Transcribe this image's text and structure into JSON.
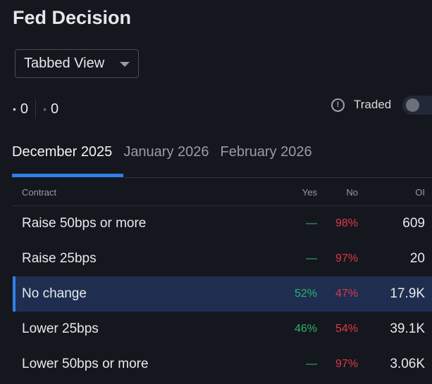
{
  "title": "Fed Decision",
  "view_select": {
    "value": "Tabbed View"
  },
  "counts": {
    "filled": "0",
    "open": "0"
  },
  "traded": {
    "label": "Traded",
    "on": false
  },
  "tabs": [
    {
      "label": "December 2025",
      "active": true
    },
    {
      "label": "January 2026"
    },
    {
      "label": "February 2026"
    }
  ],
  "table": {
    "headers": {
      "contract": "Contract",
      "yes": "Yes",
      "no": "No",
      "oi": "OI"
    },
    "rows": [
      {
        "contract": "Raise 50bps or more",
        "yes": "—",
        "no": "98%",
        "oi": "609"
      },
      {
        "contract": "Raise 25bps",
        "yes": "—",
        "no": "97%",
        "oi": "20"
      },
      {
        "contract": "No change",
        "yes": "52%",
        "no": "47%",
        "oi": "17.9K",
        "selected": true
      },
      {
        "contract": "Lower 25bps",
        "yes": "46%",
        "no": "54%",
        "oi": "39.1K"
      },
      {
        "contract": "Lower 50bps or more",
        "yes": "—",
        "no": "97%",
        "oi": "3.06K"
      }
    ]
  },
  "colors": {
    "accent": "#2f7fe8",
    "yes": "#2bb36a",
    "no": "#e0374b",
    "selected_row": "#1f2e50"
  }
}
